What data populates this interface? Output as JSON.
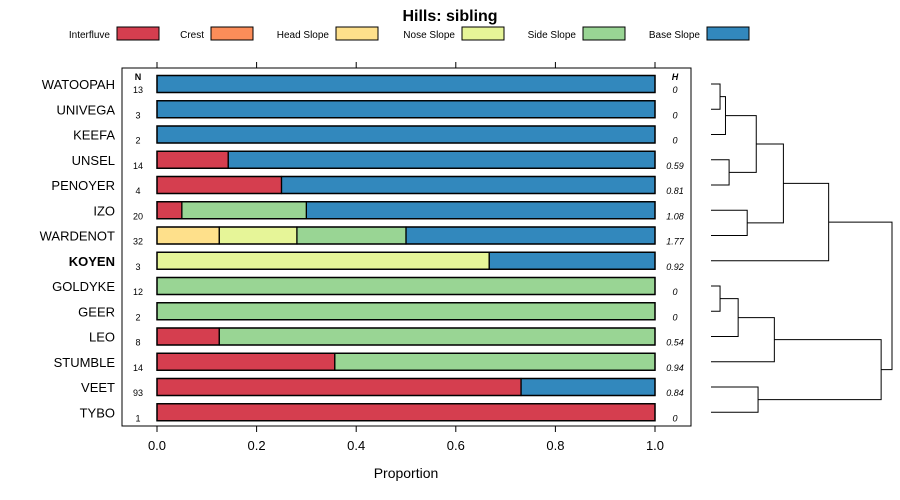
{
  "chart_data": {
    "type": "bar",
    "stacked": true,
    "orientation": "horizontal",
    "title": "Hills: sibling",
    "xlabel": "Proportion",
    "xlim": [
      0,
      1
    ],
    "xticks": [
      "0.0",
      "0.2",
      "0.4",
      "0.6",
      "0.8",
      "1.0"
    ],
    "n_header": "N",
    "h_header": "H",
    "legend_position": "top",
    "legend": [
      {
        "name": "Interfluve",
        "color": "#d53e4f"
      },
      {
        "name": "Crest",
        "color": "#fc8d59"
      },
      {
        "name": "Head Slope",
        "color": "#fee08b"
      },
      {
        "name": "Nose Slope",
        "color": "#e6f598"
      },
      {
        "name": "Side Slope",
        "color": "#99d594"
      },
      {
        "name": "Base Slope",
        "color": "#3288bd"
      }
    ],
    "series_names": [
      "Interfluve",
      "Crest",
      "Head Slope",
      "Nose Slope",
      "Side Slope",
      "Base Slope"
    ],
    "rows": [
      {
        "name": "WATOOPAH",
        "n": "13",
        "h": "0",
        "bold": false,
        "values": [
          0,
          0,
          0,
          0,
          0,
          1
        ]
      },
      {
        "name": "UNIVEGA",
        "n": "3",
        "h": "0",
        "bold": false,
        "values": [
          0,
          0,
          0,
          0,
          0,
          1
        ]
      },
      {
        "name": "KEEFA",
        "n": "2",
        "h": "0",
        "bold": false,
        "values": [
          0,
          0,
          0,
          0,
          0,
          1
        ]
      },
      {
        "name": "UNSEL",
        "n": "14",
        "h": "0.59",
        "bold": false,
        "values": [
          0.143,
          0,
          0,
          0,
          0,
          0.857
        ]
      },
      {
        "name": "PENOYER",
        "n": "4",
        "h": "0.81",
        "bold": false,
        "values": [
          0.25,
          0,
          0,
          0,
          0,
          0.75
        ]
      },
      {
        "name": "IZO",
        "n": "20",
        "h": "1.08",
        "bold": false,
        "values": [
          0.05,
          0,
          0,
          0,
          0.25,
          0.7
        ]
      },
      {
        "name": "WARDENOT",
        "n": "32",
        "h": "1.77",
        "bold": false,
        "values": [
          0,
          0,
          0.125,
          0.156,
          0.219,
          0.5
        ]
      },
      {
        "name": "KOYEN",
        "n": "3",
        "h": "0.92",
        "bold": true,
        "values": [
          0,
          0,
          0,
          0.667,
          0,
          0.333
        ]
      },
      {
        "name": "GOLDYKE",
        "n": "12",
        "h": "0",
        "bold": false,
        "values": [
          0,
          0,
          0,
          0,
          1,
          0
        ]
      },
      {
        "name": "GEER",
        "n": "2",
        "h": "0",
        "bold": false,
        "values": [
          0,
          0,
          0,
          0,
          1,
          0
        ]
      },
      {
        "name": "LEO",
        "n": "8",
        "h": "0.54",
        "bold": false,
        "values": [
          0.125,
          0,
          0,
          0,
          0.875,
          0
        ]
      },
      {
        "name": "STUMBLE",
        "n": "14",
        "h": "0.94",
        "bold": false,
        "values": [
          0.357,
          0,
          0,
          0,
          0.643,
          0
        ]
      },
      {
        "name": "VEET",
        "n": "93",
        "h": "0.84",
        "bold": false,
        "values": [
          0.731,
          0,
          0,
          0,
          0,
          0.269
        ]
      },
      {
        "name": "TYBO",
        "n": "1",
        "h": "0",
        "bold": false,
        "values": [
          1,
          0,
          0,
          0,
          0,
          0
        ]
      }
    ],
    "dendrogram": {
      "leaves_in_order": [
        "WATOOPAH",
        "UNIVEGA",
        "KEEFA",
        "UNSEL",
        "PENOYER",
        "IZO",
        "WARDENOT",
        "KOYEN",
        "GOLDYKE",
        "GEER",
        "LEO",
        "STUMBLE",
        "VEET",
        "TYBO"
      ],
      "merges": [
        {
          "a": "WATOOPAH",
          "b": "UNIVEGA",
          "height": 0.05
        },
        {
          "a": "m0",
          "b": "KEEFA",
          "height": 0.08
        },
        {
          "a": "UNSEL",
          "b": "PENOYER",
          "height": 0.1
        },
        {
          "a": "m1",
          "b": "m2",
          "height": 0.25
        },
        {
          "a": "IZO",
          "b": "WARDENOT",
          "height": 0.2
        },
        {
          "a": "m3",
          "b": "m4",
          "height": 0.4
        },
        {
          "a": "m5",
          "b": "KOYEN",
          "height": 0.65
        },
        {
          "a": "GOLDYKE",
          "b": "GEER",
          "height": 0.05
        },
        {
          "a": "m7",
          "b": "LEO",
          "height": 0.15
        },
        {
          "a": "m8",
          "b": "STUMBLE",
          "height": 0.35
        },
        {
          "a": "VEET",
          "b": "TYBO",
          "height": 0.26
        },
        {
          "a": "m9",
          "b": "m10",
          "height": 0.94
        },
        {
          "a": "m6",
          "b": "m11",
          "height": 1.0
        }
      ]
    }
  }
}
